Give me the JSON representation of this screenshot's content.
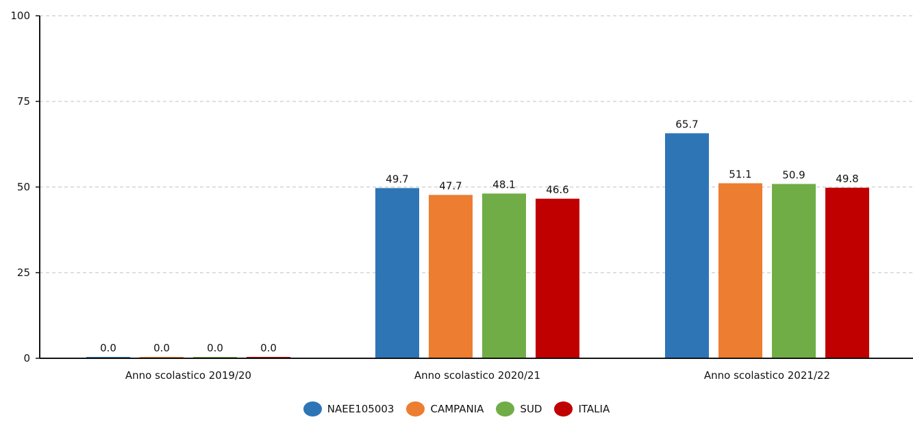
{
  "chart_data": {
    "type": "bar",
    "categories": [
      "Anno scolastico 2019/20",
      "Anno scolastico 2020/21",
      "Anno scolastico 2021/22"
    ],
    "series": [
      {
        "name": "NAEE105003",
        "color": "#2e75b6",
        "values": [
          0.0,
          49.7,
          65.7
        ]
      },
      {
        "name": "CAMPANIA",
        "color": "#ed7d31",
        "values": [
          0.0,
          47.7,
          51.1
        ]
      },
      {
        "name": "SUD",
        "color": "#70ad47",
        "values": [
          0.0,
          48.1,
          50.9
        ]
      },
      {
        "name": "ITALIA",
        "color": "#c00000",
        "values": [
          0.0,
          46.6,
          49.8
        ]
      }
    ],
    "ylim": [
      0,
      100
    ],
    "yticks": [
      "0",
      "25",
      "50",
      "75",
      "100"
    ],
    "grid": true,
    "legend_position": "bottom-center",
    "title": "",
    "xlabel": "",
    "ylabel": ""
  }
}
